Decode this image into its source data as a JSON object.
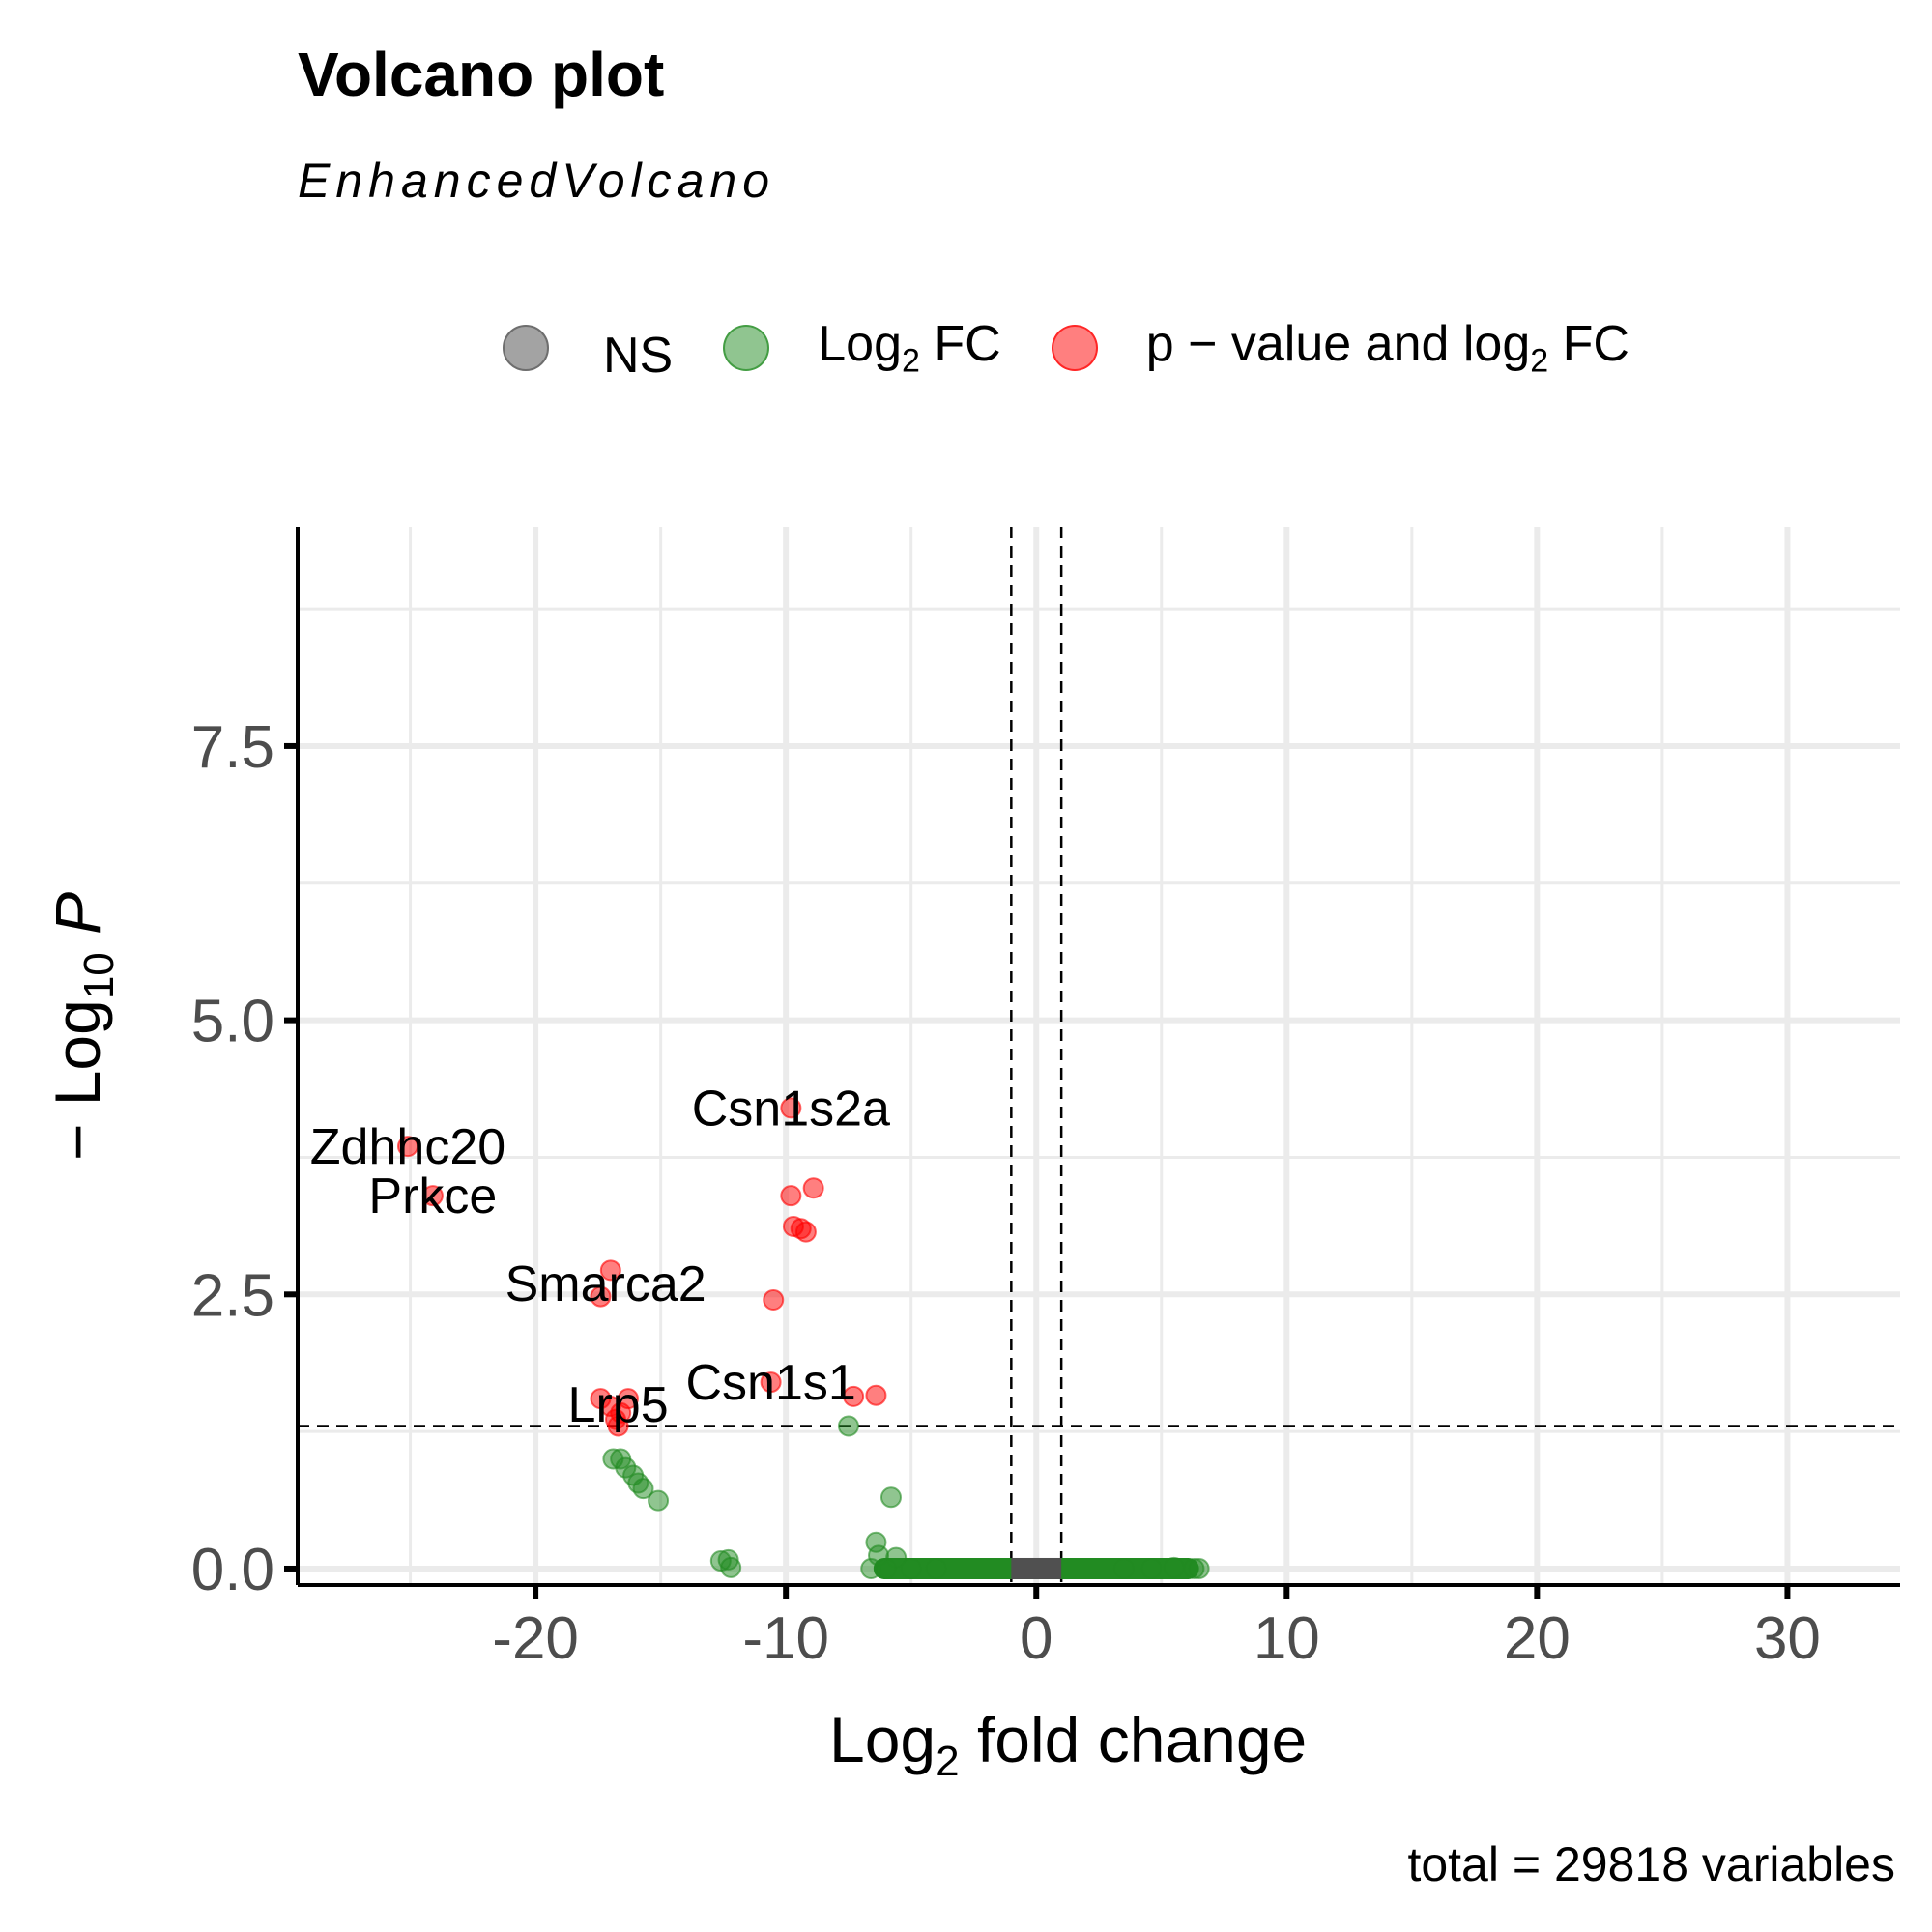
{
  "chart_data": {
    "type": "scatter",
    "title": "Volcano plot",
    "subtitle": "EnhancedVolcano",
    "xlabel_main": "Log",
    "xlabel_sub": "2",
    "xlabel_rest": " fold change",
    "ylabel_pre": "− Log",
    "ylabel_sub": "10",
    "ylabel_var": "P",
    "caption": "total = 29818 variables",
    "xlim": [
      -29.5,
      34.5
    ],
    "ylim": [
      -0.15,
      9.5
    ],
    "x_ticks": [
      -20,
      -10,
      0,
      10,
      20,
      30
    ],
    "x_tick_labels": [
      "-20",
      "-10",
      "0",
      "10",
      "20",
      "30"
    ],
    "y_ticks": [
      0,
      2.5,
      5,
      7.5
    ],
    "y_tick_labels": [
      "0.0",
      "2.5",
      "5.0",
      "7.5"
    ],
    "fc_cutoff": [
      -1,
      1
    ],
    "p_cutoff_neglog10": 1.3,
    "legend": [
      {
        "key": "ns",
        "label": "NS",
        "color": "#8c8c8c"
      },
      {
        "key": "fc",
        "label_main": "Log",
        "label_sub": "2",
        "label_rest": " FC",
        "color": "#228b22"
      },
      {
        "key": "sig",
        "label_main": "p − value and log",
        "label_sub": "2",
        "label_rest": " FC",
        "color": "#ff0000"
      }
    ],
    "colors": {
      "ns": "#8c8c8c",
      "fc": "#228b22",
      "sig": "#ff0000"
    },
    "ns_band": [
      -1,
      1
    ],
    "fc_band_x": [
      -6.5,
      6.5
    ],
    "points": [
      {
        "x": -9.8,
        "y": 4.2,
        "group": "sig"
      },
      {
        "x": -25.1,
        "y": 3.85,
        "group": "sig"
      },
      {
        "x": -24.1,
        "y": 3.4,
        "group": "sig"
      },
      {
        "x": -9.8,
        "y": 3.4,
        "group": "sig"
      },
      {
        "x": -8.9,
        "y": 3.47,
        "group": "sig"
      },
      {
        "x": -9.7,
        "y": 3.12,
        "group": "sig"
      },
      {
        "x": -9.4,
        "y": 3.1,
        "group": "sig"
      },
      {
        "x": -9.2,
        "y": 3.07,
        "group": "sig"
      },
      {
        "x": -17.0,
        "y": 2.72,
        "group": "sig"
      },
      {
        "x": -17.4,
        "y": 2.48,
        "group": "sig"
      },
      {
        "x": -10.5,
        "y": 2.45,
        "group": "sig"
      },
      {
        "x": -10.6,
        "y": 1.7,
        "group": "sig"
      },
      {
        "x": -7.3,
        "y": 1.57,
        "group": "sig"
      },
      {
        "x": -6.4,
        "y": 1.58,
        "group": "sig"
      },
      {
        "x": -17.4,
        "y": 1.55,
        "group": "sig"
      },
      {
        "x": -16.3,
        "y": 1.55,
        "group": "sig"
      },
      {
        "x": -17.0,
        "y": 1.48,
        "group": "sig"
      },
      {
        "x": -16.6,
        "y": 1.42,
        "group": "sig"
      },
      {
        "x": -16.8,
        "y": 1.36,
        "group": "sig"
      },
      {
        "x": -16.7,
        "y": 1.3,
        "group": "sig"
      },
      {
        "x": -7.5,
        "y": 1.3,
        "group": "fc"
      },
      {
        "x": -16.9,
        "y": 1.0,
        "group": "fc"
      },
      {
        "x": -16.6,
        "y": 1.0,
        "group": "fc"
      },
      {
        "x": -16.4,
        "y": 0.92,
        "group": "fc"
      },
      {
        "x": -16.1,
        "y": 0.85,
        "group": "fc"
      },
      {
        "x": -15.9,
        "y": 0.78,
        "group": "fc"
      },
      {
        "x": -15.7,
        "y": 0.73,
        "group": "fc"
      },
      {
        "x": -15.1,
        "y": 0.62,
        "group": "fc"
      },
      {
        "x": -5.8,
        "y": 0.65,
        "group": "fc"
      },
      {
        "x": -12.6,
        "y": 0.07,
        "group": "fc"
      },
      {
        "x": -12.3,
        "y": 0.08,
        "group": "fc"
      },
      {
        "x": -12.2,
        "y": 0.01,
        "group": "fc"
      },
      {
        "x": -6.4,
        "y": 0.24,
        "group": "fc"
      },
      {
        "x": -6.3,
        "y": 0.12,
        "group": "fc"
      },
      {
        "x": -5.6,
        "y": 0.1,
        "group": "fc"
      },
      {
        "x": -6.6,
        "y": 0.0,
        "group": "fc"
      },
      {
        "x": -6.0,
        "y": 0.0,
        "group": "fc"
      },
      {
        "x": -5.0,
        "y": 0.0,
        "group": "fc"
      },
      {
        "x": -4.0,
        "y": 0.0,
        "group": "fc"
      },
      {
        "x": 3.5,
        "y": 0.0,
        "group": "fc"
      },
      {
        "x": 4.6,
        "y": 0.0,
        "group": "fc"
      },
      {
        "x": 5.5,
        "y": 0.01,
        "group": "fc"
      },
      {
        "x": 6.3,
        "y": 0.0,
        "group": "fc"
      },
      {
        "x": 6.5,
        "y": 0.0,
        "group": "fc"
      }
    ],
    "annotations": [
      {
        "label": "Csn1s2a",
        "x": -9.8,
        "y": 4.2
      },
      {
        "label": "Zdhhc20",
        "x": -25.1,
        "y": 3.85
      },
      {
        "label": "Prkce",
        "x": -24.1,
        "y": 3.4
      },
      {
        "label": "Smarca2",
        "x": -17.2,
        "y": 2.6
      },
      {
        "label": "Csn1s1",
        "x": -10.6,
        "y": 1.7
      },
      {
        "label": "Lrp5",
        "x": -16.7,
        "y": 1.5
      }
    ]
  }
}
